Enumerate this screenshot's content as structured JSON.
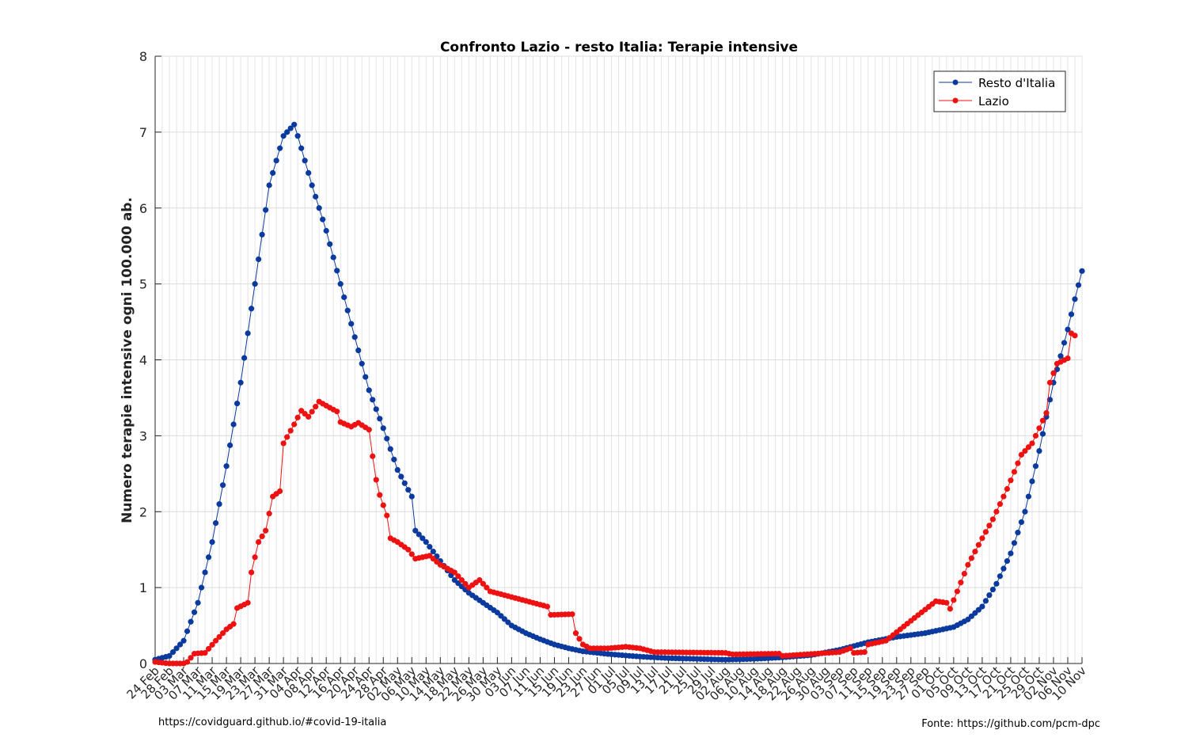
{
  "footer": {
    "left": "https://covidguard.github.io/#covid-19-italia",
    "right": "Fonte: https://github.com/pcm-dpc"
  },
  "chart_data": {
    "type": "line",
    "title": "Confronto Lazio - resto Italia: Terapie intensive",
    "xlabel": "",
    "ylabel": "Numero terapie intensive ogni 100.000 ab.",
    "ylim": [
      0,
      8
    ],
    "yticks": [
      0,
      1,
      2,
      3,
      4,
      5,
      6,
      7,
      8
    ],
    "grid": true,
    "legend_position": "top-right",
    "start_date": "2020-02-24",
    "x_tick_labels": [
      "24 Feb",
      "28 Feb",
      "03 Mar",
      "07 Mar",
      "11 Mar",
      "15 Mar",
      "19 Mar",
      "23 Mar",
      "27 Mar",
      "31 Mar",
      "04 Apr",
      "08 Apr",
      "12 Apr",
      "16 Apr",
      "20 Apr",
      "24 Apr",
      "28 Apr",
      "02 May",
      "06 May",
      "10 May",
      "14 May",
      "18 May",
      "22 May",
      "26 May",
      "30 May",
      "03 Jun",
      "07 Jun",
      "11 Jun",
      "15 Jun",
      "19 Jun",
      "23 Jun",
      "27 Jun",
      "01 Jul",
      "05 Jul",
      "09 Jul",
      "13 Jul",
      "17 Jul",
      "21 Jul",
      "25 Jul",
      "29 Jul",
      "02 Aug",
      "06 Aug",
      "10 Aug",
      "14 Aug",
      "18 Aug",
      "22 Aug",
      "26 Aug",
      "30 Aug",
      "03 Sep",
      "07 Sep",
      "11 Sep",
      "15 Sep",
      "19 Sep",
      "23 Sep",
      "27 Sep",
      "01 Oct",
      "05 Oct",
      "09 Oct",
      "13 Oct",
      "17 Oct",
      "21 Oct",
      "25 Oct",
      "29 Oct",
      "02 Nov",
      "06 Nov",
      "10 Nov"
    ],
    "series": [
      {
        "name": "Resto d'Italia",
        "color": "#0a3a9e",
        "anchors": [
          {
            "date": "24 Feb",
            "y": 0.05
          },
          {
            "date": "28 Feb",
            "y": 0.1
          },
          {
            "date": "03 Mar",
            "y": 0.3
          },
          {
            "date": "07 Mar",
            "y": 0.8
          },
          {
            "date": "11 Mar",
            "y": 1.6
          },
          {
            "date": "15 Mar",
            "y": 2.6
          },
          {
            "date": "19 Mar",
            "y": 3.7
          },
          {
            "date": "23 Mar",
            "y": 5.0
          },
          {
            "date": "27 Mar",
            "y": 6.3
          },
          {
            "date": "31 Mar",
            "y": 6.95
          },
          {
            "date": "03 Apr",
            "y": 7.1
          },
          {
            "date": "04 Apr",
            "y": 6.95
          },
          {
            "date": "08 Apr",
            "y": 6.3
          },
          {
            "date": "12 Apr",
            "y": 5.7
          },
          {
            "date": "16 Apr",
            "y": 5.0
          },
          {
            "date": "20 Apr",
            "y": 4.3
          },
          {
            "date": "24 Apr",
            "y": 3.6
          },
          {
            "date": "28 Apr",
            "y": 3.1
          },
          {
            "date": "02 May",
            "y": 2.55
          },
          {
            "date": "06 May",
            "y": 2.2
          },
          {
            "date": "07 May",
            "y": 1.75
          },
          {
            "date": "10 May",
            "y": 1.6
          },
          {
            "date": "14 May",
            "y": 1.35
          },
          {
            "date": "18 May",
            "y": 1.1
          },
          {
            "date": "22 May",
            "y": 0.93
          },
          {
            "date": "26 May",
            "y": 0.8
          },
          {
            "date": "30 May",
            "y": 0.67
          },
          {
            "date": "03 Jun",
            "y": 0.5
          },
          {
            "date": "07 Jun",
            "y": 0.4
          },
          {
            "date": "11 Jun",
            "y": 0.32
          },
          {
            "date": "15 Jun",
            "y": 0.25
          },
          {
            "date": "19 Jun",
            "y": 0.2
          },
          {
            "date": "23 Jun",
            "y": 0.16
          },
          {
            "date": "27 Jun",
            "y": 0.14
          },
          {
            "date": "01 Jul",
            "y": 0.12
          },
          {
            "date": "09 Jul",
            "y": 0.09
          },
          {
            "date": "17 Jul",
            "y": 0.07
          },
          {
            "date": "25 Jul",
            "y": 0.06
          },
          {
            "date": "02 Aug",
            "y": 0.05
          },
          {
            "date": "10 Aug",
            "y": 0.06
          },
          {
            "date": "18 Aug",
            "y": 0.08
          },
          {
            "date": "26 Aug",
            "y": 0.11
          },
          {
            "date": "03 Sep",
            "y": 0.18
          },
          {
            "date": "11 Sep",
            "y": 0.28
          },
          {
            "date": "19 Sep",
            "y": 0.35
          },
          {
            "date": "27 Sep",
            "y": 0.4
          },
          {
            "date": "05 Oct",
            "y": 0.48
          },
          {
            "date": "09 Oct",
            "y": 0.58
          },
          {
            "date": "13 Oct",
            "y": 0.75
          },
          {
            "date": "17 Oct",
            "y": 1.05
          },
          {
            "date": "21 Oct",
            "y": 1.45
          },
          {
            "date": "25 Oct",
            "y": 2.0
          },
          {
            "date": "29 Oct",
            "y": 2.8
          },
          {
            "date": "02 Nov",
            "y": 3.7
          },
          {
            "date": "06 Nov",
            "y": 4.4
          },
          {
            "date": "08 Nov",
            "y": 4.8
          },
          {
            "date": "10 Nov",
            "y": 5.17
          }
        ]
      },
      {
        "name": "Lazio",
        "color": "#ee1111",
        "anchors": [
          {
            "date": "24 Feb",
            "y": 0.02
          },
          {
            "date": "28 Feb",
            "y": 0.0
          },
          {
            "date": "03 Mar",
            "y": 0.0
          },
          {
            "date": "04 Mar",
            "y": 0.02
          },
          {
            "date": "06 Mar",
            "y": 0.13
          },
          {
            "date": "09 Mar",
            "y": 0.14
          },
          {
            "date": "12 Mar",
            "y": 0.3
          },
          {
            "date": "15 Mar",
            "y": 0.45
          },
          {
            "date": "17 Mar",
            "y": 0.52
          },
          {
            "date": "18 Mar",
            "y": 0.73
          },
          {
            "date": "21 Mar",
            "y": 0.8
          },
          {
            "date": "22 Mar",
            "y": 1.2
          },
          {
            "date": "24 Mar",
            "y": 1.6
          },
          {
            "date": "26 Mar",
            "y": 1.75
          },
          {
            "date": "28 Mar",
            "y": 2.2
          },
          {
            "date": "30 Mar",
            "y": 2.27
          },
          {
            "date": "31 Mar",
            "y": 2.9
          },
          {
            "date": "03 Apr",
            "y": 3.15
          },
          {
            "date": "05 Apr",
            "y": 3.33
          },
          {
            "date": "07 Apr",
            "y": 3.25
          },
          {
            "date": "10 Apr",
            "y": 3.45
          },
          {
            "date": "13 Apr",
            "y": 3.37
          },
          {
            "date": "15 Apr",
            "y": 3.32
          },
          {
            "date": "16 Apr",
            "y": 3.18
          },
          {
            "date": "19 Apr",
            "y": 3.12
          },
          {
            "date": "21 Apr",
            "y": 3.17
          },
          {
            "date": "24 Apr",
            "y": 3.08
          },
          {
            "date": "25 Apr",
            "y": 2.73
          },
          {
            "date": "26 Apr",
            "y": 2.42
          },
          {
            "date": "27 Apr",
            "y": 2.22
          },
          {
            "date": "29 Apr",
            "y": 1.95
          },
          {
            "date": "30 Apr",
            "y": 1.65
          },
          {
            "date": "02 May",
            "y": 1.6
          },
          {
            "date": "05 May",
            "y": 1.5
          },
          {
            "date": "07 May",
            "y": 1.38
          },
          {
            "date": "11 May",
            "y": 1.42
          },
          {
            "date": "14 May",
            "y": 1.3
          },
          {
            "date": "18 May",
            "y": 1.2
          },
          {
            "date": "22 May",
            "y": 1.0
          },
          {
            "date": "25 May",
            "y": 1.1
          },
          {
            "date": "28 May",
            "y": 0.95
          },
          {
            "date": "01 Jun",
            "y": 0.9
          },
          {
            "date": "05 Jun",
            "y": 0.85
          },
          {
            "date": "09 Jun",
            "y": 0.8
          },
          {
            "date": "13 Jun",
            "y": 0.75
          },
          {
            "date": "14 Jun",
            "y": 0.64
          },
          {
            "date": "20 Jun",
            "y": 0.65
          },
          {
            "date": "21 Jun",
            "y": 0.4
          },
          {
            "date": "23 Jun",
            "y": 0.25
          },
          {
            "date": "25 Jun",
            "y": 0.2
          },
          {
            "date": "30 Jun",
            "y": 0.2
          },
          {
            "date": "05 Jul",
            "y": 0.22
          },
          {
            "date": "09 Jul",
            "y": 0.2
          },
          {
            "date": "13 Jul",
            "y": 0.15
          },
          {
            "date": "02 Aug",
            "y": 0.14
          },
          {
            "date": "04 Aug",
            "y": 0.12
          },
          {
            "date": "17 Aug",
            "y": 0.13
          },
          {
            "date": "18 Aug",
            "y": 0.1
          },
          {
            "date": "03 Sep",
            "y": 0.15
          },
          {
            "date": "06 Sep",
            "y": 0.2
          },
          {
            "date": "07 Sep",
            "y": 0.14
          },
          {
            "date": "10 Sep",
            "y": 0.15
          },
          {
            "date": "11 Sep",
            "y": 0.25
          },
          {
            "date": "16 Sep",
            "y": 0.3
          },
          {
            "date": "20 Sep",
            "y": 0.45
          },
          {
            "date": "24 Sep",
            "y": 0.6
          },
          {
            "date": "30 Sep",
            "y": 0.82
          },
          {
            "date": "03 Oct",
            "y": 0.8
          },
          {
            "date": "04 Oct",
            "y": 0.72
          },
          {
            "date": "06 Oct",
            "y": 0.95
          },
          {
            "date": "09 Oct",
            "y": 1.3
          },
          {
            "date": "13 Oct",
            "y": 1.65
          },
          {
            "date": "16 Oct",
            "y": 1.9
          },
          {
            "date": "20 Oct",
            "y": 2.3
          },
          {
            "date": "24 Oct",
            "y": 2.75
          },
          {
            "date": "27 Oct",
            "y": 2.9
          },
          {
            "date": "31 Oct",
            "y": 3.3
          },
          {
            "date": "01 Nov",
            "y": 3.7
          },
          {
            "date": "03 Nov",
            "y": 3.95
          },
          {
            "date": "06 Nov",
            "y": 4.02
          },
          {
            "date": "07 Nov",
            "y": 4.35
          },
          {
            "date": "08 Nov",
            "y": 4.32
          }
        ]
      }
    ]
  }
}
